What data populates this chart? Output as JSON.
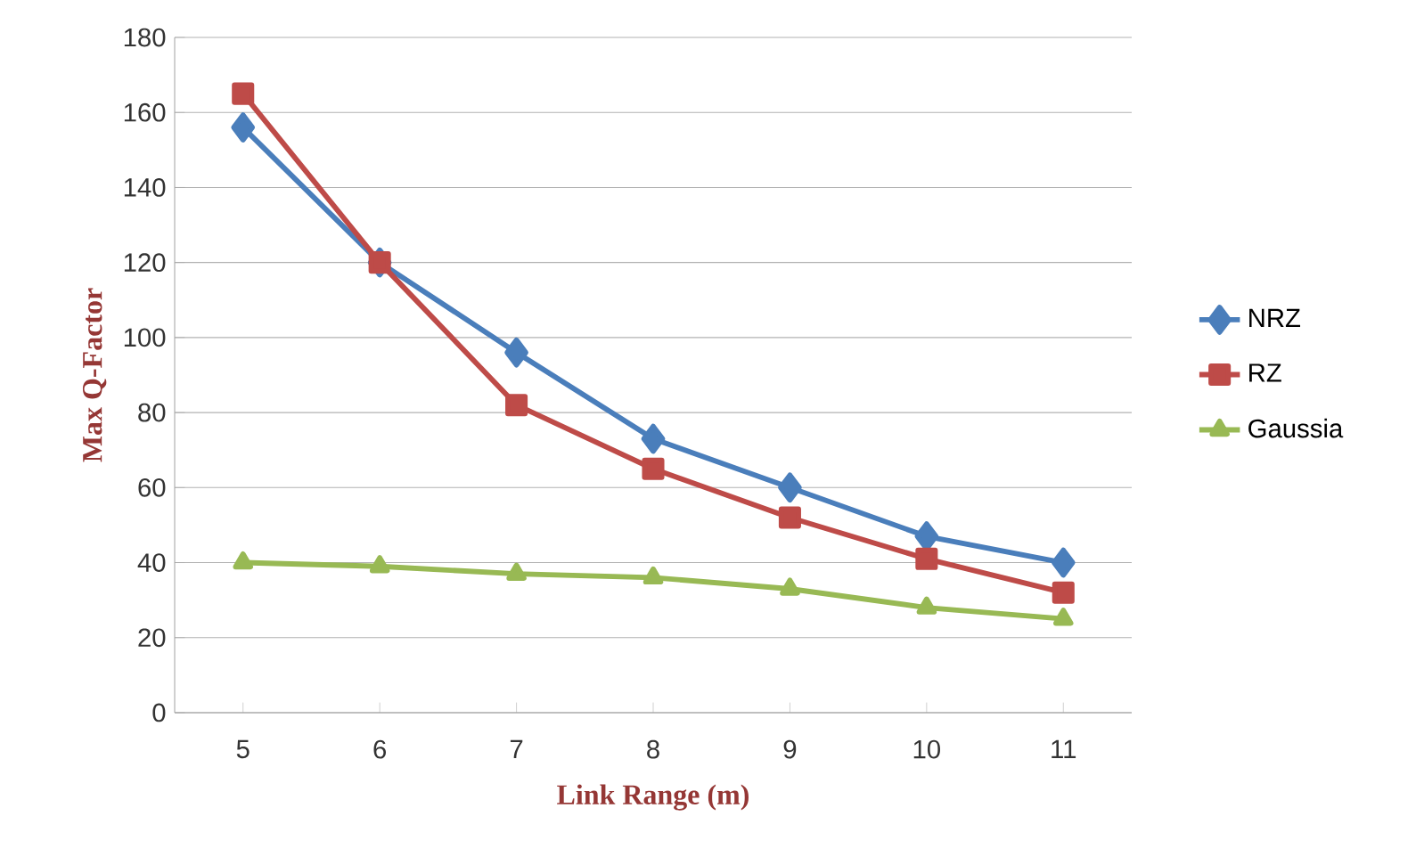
{
  "chart_data": {
    "type": "line",
    "xlabel": "Link Range (m)",
    "ylabel": "Max Q-Factor",
    "categories": [
      "5",
      "6",
      "7",
      "8",
      "9",
      "10",
      "11"
    ],
    "series": [
      {
        "name": "NRZ",
        "color": "#4a7ebb",
        "marker": "diamond",
        "values": [
          156,
          120,
          96,
          73,
          60,
          47,
          40
        ]
      },
      {
        "name": "RZ",
        "color": "#be4b48",
        "marker": "square",
        "values": [
          165,
          120,
          82,
          65,
          52,
          41,
          32
        ]
      },
      {
        "name": "Gaussia",
        "color": "#98b954",
        "marker": "triangle",
        "values": [
          40,
          39,
          37,
          36,
          33,
          28,
          25
        ]
      }
    ],
    "ylim": [
      0,
      180
    ],
    "yticks": [
      0,
      20,
      40,
      60,
      80,
      100,
      120,
      140,
      160,
      180
    ],
    "grid": "y",
    "legend": "right",
    "line_style": "solid"
  }
}
